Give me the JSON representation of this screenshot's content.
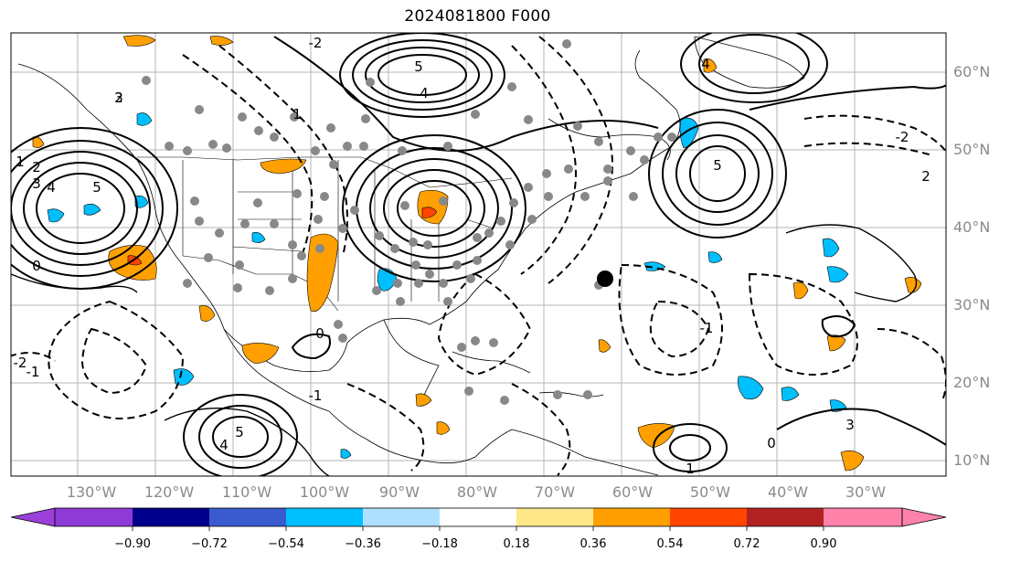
{
  "title": "2024081800 F000",
  "longitude_labels": [
    "130°W",
    "120°W",
    "110°W",
    "100°W",
    "90°W",
    "80°W",
    "70°W",
    "60°W",
    "50°W",
    "40°W",
    "30°W"
  ],
  "latitude_labels": [
    "60°N",
    "50°N",
    "40°N",
    "30°N",
    "20°N",
    "10°N"
  ],
  "colorbar": {
    "tick_labels": [
      "−0.90",
      "−0.72",
      "−0.54",
      "−0.36",
      "−0.18",
      "0.18",
      "0.36",
      "0.54",
      "0.72",
      "0.90"
    ],
    "colors": [
      "#8e3ad6",
      "#00008b",
      "#3a5bd0",
      "#00bfff",
      "#b0e0ff",
      "#ffffff",
      "#ffe88a",
      "#ffa000",
      "#ff4500",
      "#b22222",
      "#ff82ab"
    ],
    "under_color": "#9b40d9",
    "over_color": "#ff82ab"
  },
  "contour_labels": [
    "5",
    "4",
    "3",
    "2",
    "1",
    "0",
    "-1",
    "-2",
    "5",
    "4",
    "3",
    "2",
    "1",
    "0",
    "-1",
    "-2",
    "5",
    "4",
    "3",
    "2",
    "1",
    "0",
    "-1",
    "-2",
    "5",
    "4"
  ],
  "markers": {
    "large_dot_color": "#000000",
    "small_dot_color": "#888888"
  }
}
